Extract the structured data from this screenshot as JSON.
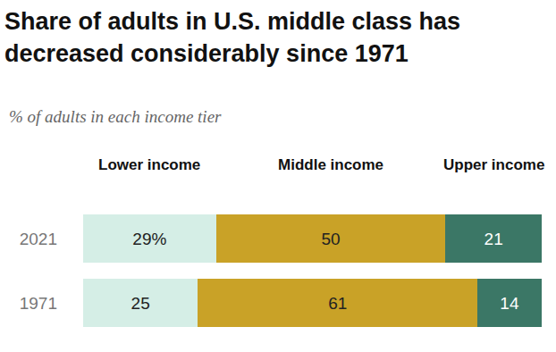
{
  "chart_data": {
    "type": "bar",
    "title": "Share of adults in U.S. middle class has decreased considerably since 1971",
    "subtitle": "% of adults in each income tier",
    "categories": [
      "2021",
      "1971"
    ],
    "series": [
      {
        "name": "Lower income",
        "color": "#d5eee6",
        "values": [
          29,
          25
        ],
        "value_labels": [
          "29%",
          "25"
        ]
      },
      {
        "name": "Middle income",
        "color": "#c9a227",
        "values": [
          50,
          61
        ]
      },
      {
        "name": "Upper income",
        "color": "#3b7766",
        "values": [
          21,
          14
        ]
      }
    ],
    "xlim": [
      0,
      100
    ],
    "orientation": "horizontal",
    "stacked": true,
    "data_labels": true,
    "tick_labels": "y",
    "grid": false
  }
}
